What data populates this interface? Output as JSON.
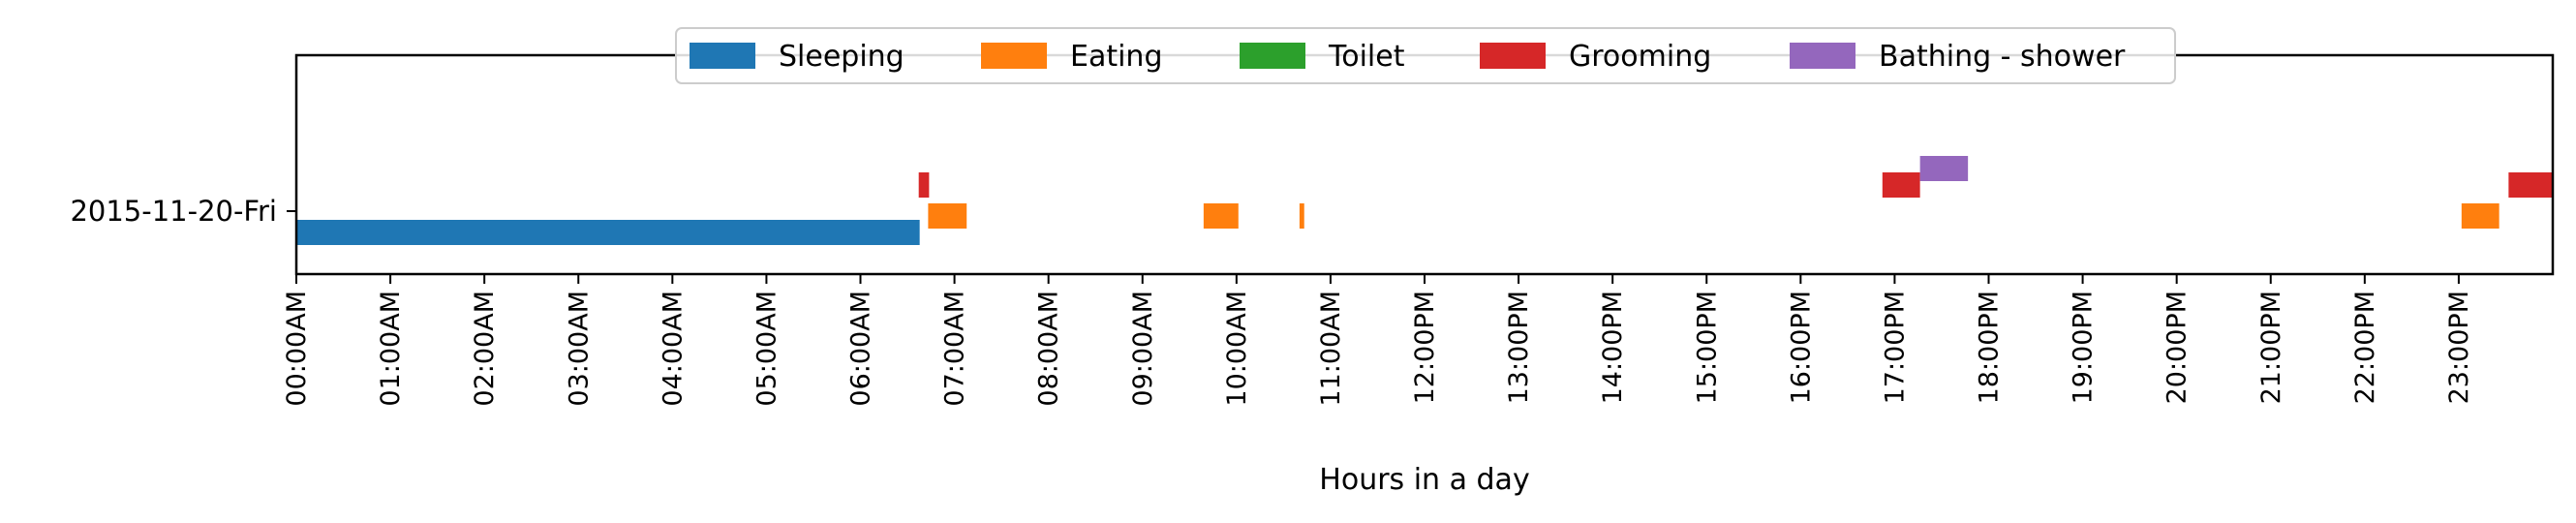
{
  "chart_data": {
    "type": "bar",
    "orientation": "horizontal-timeline",
    "title": "",
    "xlabel": "Hours in a day",
    "ylabel": "",
    "xlim": [
      0,
      24
    ],
    "x_unit": "hours",
    "x_ticks": [
      {
        "value": 0,
        "label": "00:00AM"
      },
      {
        "value": 1,
        "label": "01:00AM"
      },
      {
        "value": 2,
        "label": "02:00AM"
      },
      {
        "value": 3,
        "label": "03:00AM"
      },
      {
        "value": 4,
        "label": "04:00AM"
      },
      {
        "value": 5,
        "label": "05:00AM"
      },
      {
        "value": 6,
        "label": "06:00AM"
      },
      {
        "value": 7,
        "label": "07:00AM"
      },
      {
        "value": 8,
        "label": "08:00AM"
      },
      {
        "value": 9,
        "label": "09:00AM"
      },
      {
        "value": 10,
        "label": "10:00AM"
      },
      {
        "value": 11,
        "label": "11:00AM"
      },
      {
        "value": 12,
        "label": "12:00PM"
      },
      {
        "value": 13,
        "label": "13:00PM"
      },
      {
        "value": 14,
        "label": "14:00PM"
      },
      {
        "value": 15,
        "label": "15:00PM"
      },
      {
        "value": 16,
        "label": "16:00PM"
      },
      {
        "value": 17,
        "label": "17:00PM"
      },
      {
        "value": 18,
        "label": "18:00PM"
      },
      {
        "value": 19,
        "label": "19:00PM"
      },
      {
        "value": 20,
        "label": "20:00PM"
      },
      {
        "value": 21,
        "label": "21:00PM"
      },
      {
        "value": 22,
        "label": "22:00PM"
      },
      {
        "value": 23,
        "label": "23:00PM"
      }
    ],
    "categories": [
      "2015-11-20-Fri"
    ],
    "grid": false,
    "legend_position": "top-center",
    "series": [
      {
        "name": "Sleeping",
        "color": "#1f77b4",
        "level": 0,
        "intervals": [
          [
            0.0,
            6.63
          ]
        ]
      },
      {
        "name": "Eating",
        "color": "#ff7f0e",
        "level": 1,
        "intervals": [
          [
            6.72,
            7.13
          ],
          [
            9.65,
            10.02
          ],
          [
            10.67,
            10.72
          ],
          [
            23.03,
            23.43
          ]
        ]
      },
      {
        "name": "Toilet",
        "color": "#2ca02c",
        "level": 2,
        "intervals": []
      },
      {
        "name": "Grooming",
        "color": "#d62728",
        "level": 2,
        "intervals": [
          [
            6.62,
            6.73
          ],
          [
            16.87,
            17.27
          ],
          [
            23.53,
            24.0
          ]
        ]
      },
      {
        "name": "Bathing - shower",
        "color": "#9467bd",
        "level": 3,
        "intervals": [
          [
            17.27,
            17.78
          ]
        ]
      }
    ]
  }
}
